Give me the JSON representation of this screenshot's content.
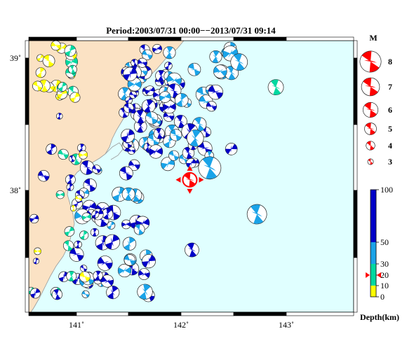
{
  "header": {
    "title": "Period:2003/07/31 00:00−−2013/07/31 09:14"
  },
  "map": {
    "lon_ticks": [
      "141˚",
      "142˚",
      "143˚"
    ],
    "lat_ticks": [
      "39˚",
      "38˚"
    ],
    "colors": {
      "sea": "#e0ffff",
      "land": "#fbe2c4",
      "coast": "#999999",
      "shallow": "#ffff00",
      "mid": "#00d8a0",
      "deep1": "#1aa3e8",
      "deep2": "#0000c8",
      "highlight": "#ff0000"
    },
    "highlighted_event": {
      "lon": 142.08,
      "lat": 38.08,
      "depth_km": 20
    }
  },
  "magnitude_legend": {
    "title": "M",
    "items": [
      {
        "label": "8",
        "magnitude": 8
      },
      {
        "label": "7",
        "magnitude": 7
      },
      {
        "label": "6",
        "magnitude": 6
      },
      {
        "label": "5",
        "magnitude": 5
      },
      {
        "label": "4",
        "magnitude": 4
      },
      {
        "label": "3",
        "magnitude": 3
      }
    ]
  },
  "depth_colorbar": {
    "label": "Depth(km)",
    "ticks": [
      "100",
      "50",
      "30",
      "20",
      "10",
      "0"
    ],
    "tick_values": [
      100,
      50,
      30,
      20,
      10,
      0
    ],
    "bands": [
      {
        "from": 0,
        "to": 10,
        "color": "#ffff00"
      },
      {
        "from": 10,
        "to": 30,
        "color": "#00d8a0"
      },
      {
        "from": 30,
        "to": 50,
        "color": "#1aa3e8"
      },
      {
        "from": 50,
        "to": 100,
        "color": "#0000c8"
      }
    ],
    "marker_depth": 20
  }
}
